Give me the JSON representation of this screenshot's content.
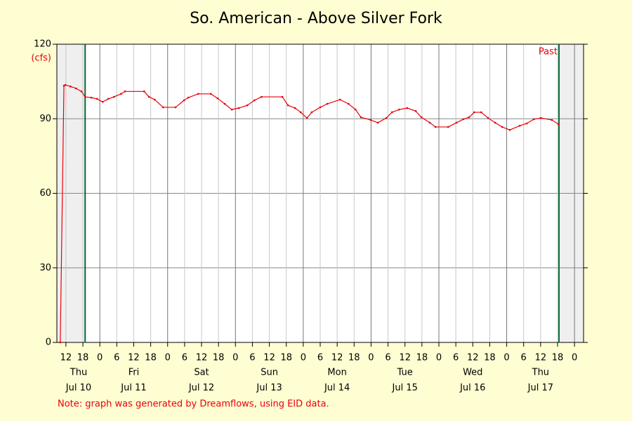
{
  "chart_data": {
    "type": "line",
    "title": "So. American - Above Silver Fork",
    "y_unit": "(cfs)",
    "note": "Note: graph was generated by Dreamflows, using EID data.",
    "past_label": "Past",
    "data_window": [
      18.8,
      186.5
    ],
    "xlim": [
      8.8,
      195.2
    ],
    "ylim": [
      0,
      120
    ],
    "yticks": [
      0,
      30,
      60,
      90,
      120
    ],
    "xticks": [
      12,
      18,
      {
        "value": 24,
        "label": "0"
      },
      {
        "value": 30,
        "label": "6"
      },
      {
        "value": 36,
        "label": "12"
      },
      {
        "value": 42,
        "label": "18"
      },
      {
        "value": 48,
        "label": "0"
      },
      {
        "value": 54,
        "label": "6"
      },
      {
        "value": 60,
        "label": "12"
      },
      {
        "value": 66,
        "label": "18"
      },
      {
        "value": 72,
        "label": "0"
      },
      {
        "value": 78,
        "label": "6"
      },
      {
        "value": 84,
        "label": "12"
      },
      {
        "value": 90,
        "label": "18"
      },
      {
        "value": 96,
        "label": "0"
      },
      {
        "value": 102,
        "label": "6"
      },
      {
        "value": 108,
        "label": "12"
      },
      {
        "value": 114,
        "label": "18"
      },
      {
        "value": 120,
        "label": "0"
      },
      {
        "value": 126,
        "label": "6"
      },
      {
        "value": 132,
        "label": "12"
      },
      {
        "value": 138,
        "label": "18"
      },
      {
        "value": 144,
        "label": "0"
      },
      {
        "value": 150,
        "label": "6"
      },
      {
        "value": 156,
        "label": "12"
      },
      {
        "value": 162,
        "label": "18"
      },
      {
        "value": 168,
        "label": "0"
      },
      {
        "value": 174,
        "label": "6"
      },
      {
        "value": 180,
        "label": "12"
      },
      {
        "value": 186,
        "label": "18"
      },
      {
        "value": 192,
        "label": "0"
      }
    ],
    "day_labels": [
      {
        "value": 16.5,
        "day": "Thu",
        "date": "Jul 10"
      },
      {
        "value": 36,
        "day": "Fri",
        "date": "Jul 11"
      },
      {
        "value": 60,
        "day": "Sat",
        "date": "Jul 12"
      },
      {
        "value": 84,
        "day": "Sun",
        "date": "Jul 13"
      },
      {
        "value": 108,
        "day": "Mon",
        "date": "Jul 14"
      },
      {
        "value": 132,
        "day": "Tue",
        "date": "Jul 15"
      },
      {
        "value": 156,
        "day": "Wed",
        "date": "Jul 16"
      },
      {
        "value": 180,
        "day": "Thu",
        "date": "Jul 17"
      }
    ],
    "grid": true,
    "series": [
      {
        "color": "#e8000b",
        "x": [
          10.0,
          11.3,
          11.8,
          13.6,
          15.6,
          17.5,
          18.8,
          21.0,
          23.0,
          25.0,
          27.0,
          29.0,
          31.5,
          32.9,
          39.7,
          41.4,
          43.4,
          46.4,
          50.8,
          53.8,
          55.3,
          58.8,
          63.3,
          65.7,
          68.2,
          70.7,
          73.2,
          76.2,
          78.7,
          81.2,
          88.6,
          90.6,
          93.1,
          95.1,
          97.3,
          99.0,
          102.0,
          104.5,
          109.0,
          112.0,
          114.5,
          116.4,
          119.9,
          122.4,
          125.4,
          127.4,
          129.9,
          132.8,
          135.8,
          137.8,
          140.8,
          142.8,
          147.3,
          150.2,
          152.7,
          154.7,
          156.5,
          159.0,
          161.4,
          163.9,
          166.4,
          169.1,
          172.6,
          175.1,
          177.6,
          180.1,
          184.0,
          186.3
        ],
        "values": [
          0,
          103.3,
          103.6,
          103,
          102.2,
          101,
          98.8,
          98.5,
          98,
          96.8,
          98,
          98.8,
          100,
          101,
          101,
          98.8,
          97.7,
          94.6,
          94.6,
          97.4,
          98.5,
          100,
          100,
          98.2,
          96,
          93.7,
          94.3,
          95.4,
          97.4,
          98.8,
          98.8,
          95.4,
          94.3,
          92.6,
          90.3,
          92.6,
          94.6,
          96,
          97.7,
          96,
          93.7,
          90.6,
          89.5,
          88.4,
          90.3,
          92.6,
          93.7,
          94.3,
          93.1,
          90.6,
          88.4,
          86.7,
          86.7,
          88.4,
          89.8,
          90.6,
          92.6,
          92.6,
          90.3,
          88.4,
          86.7,
          85.5,
          87.2,
          88.1,
          89.8,
          90.3,
          89.5,
          87.8
        ]
      }
    ]
  }
}
